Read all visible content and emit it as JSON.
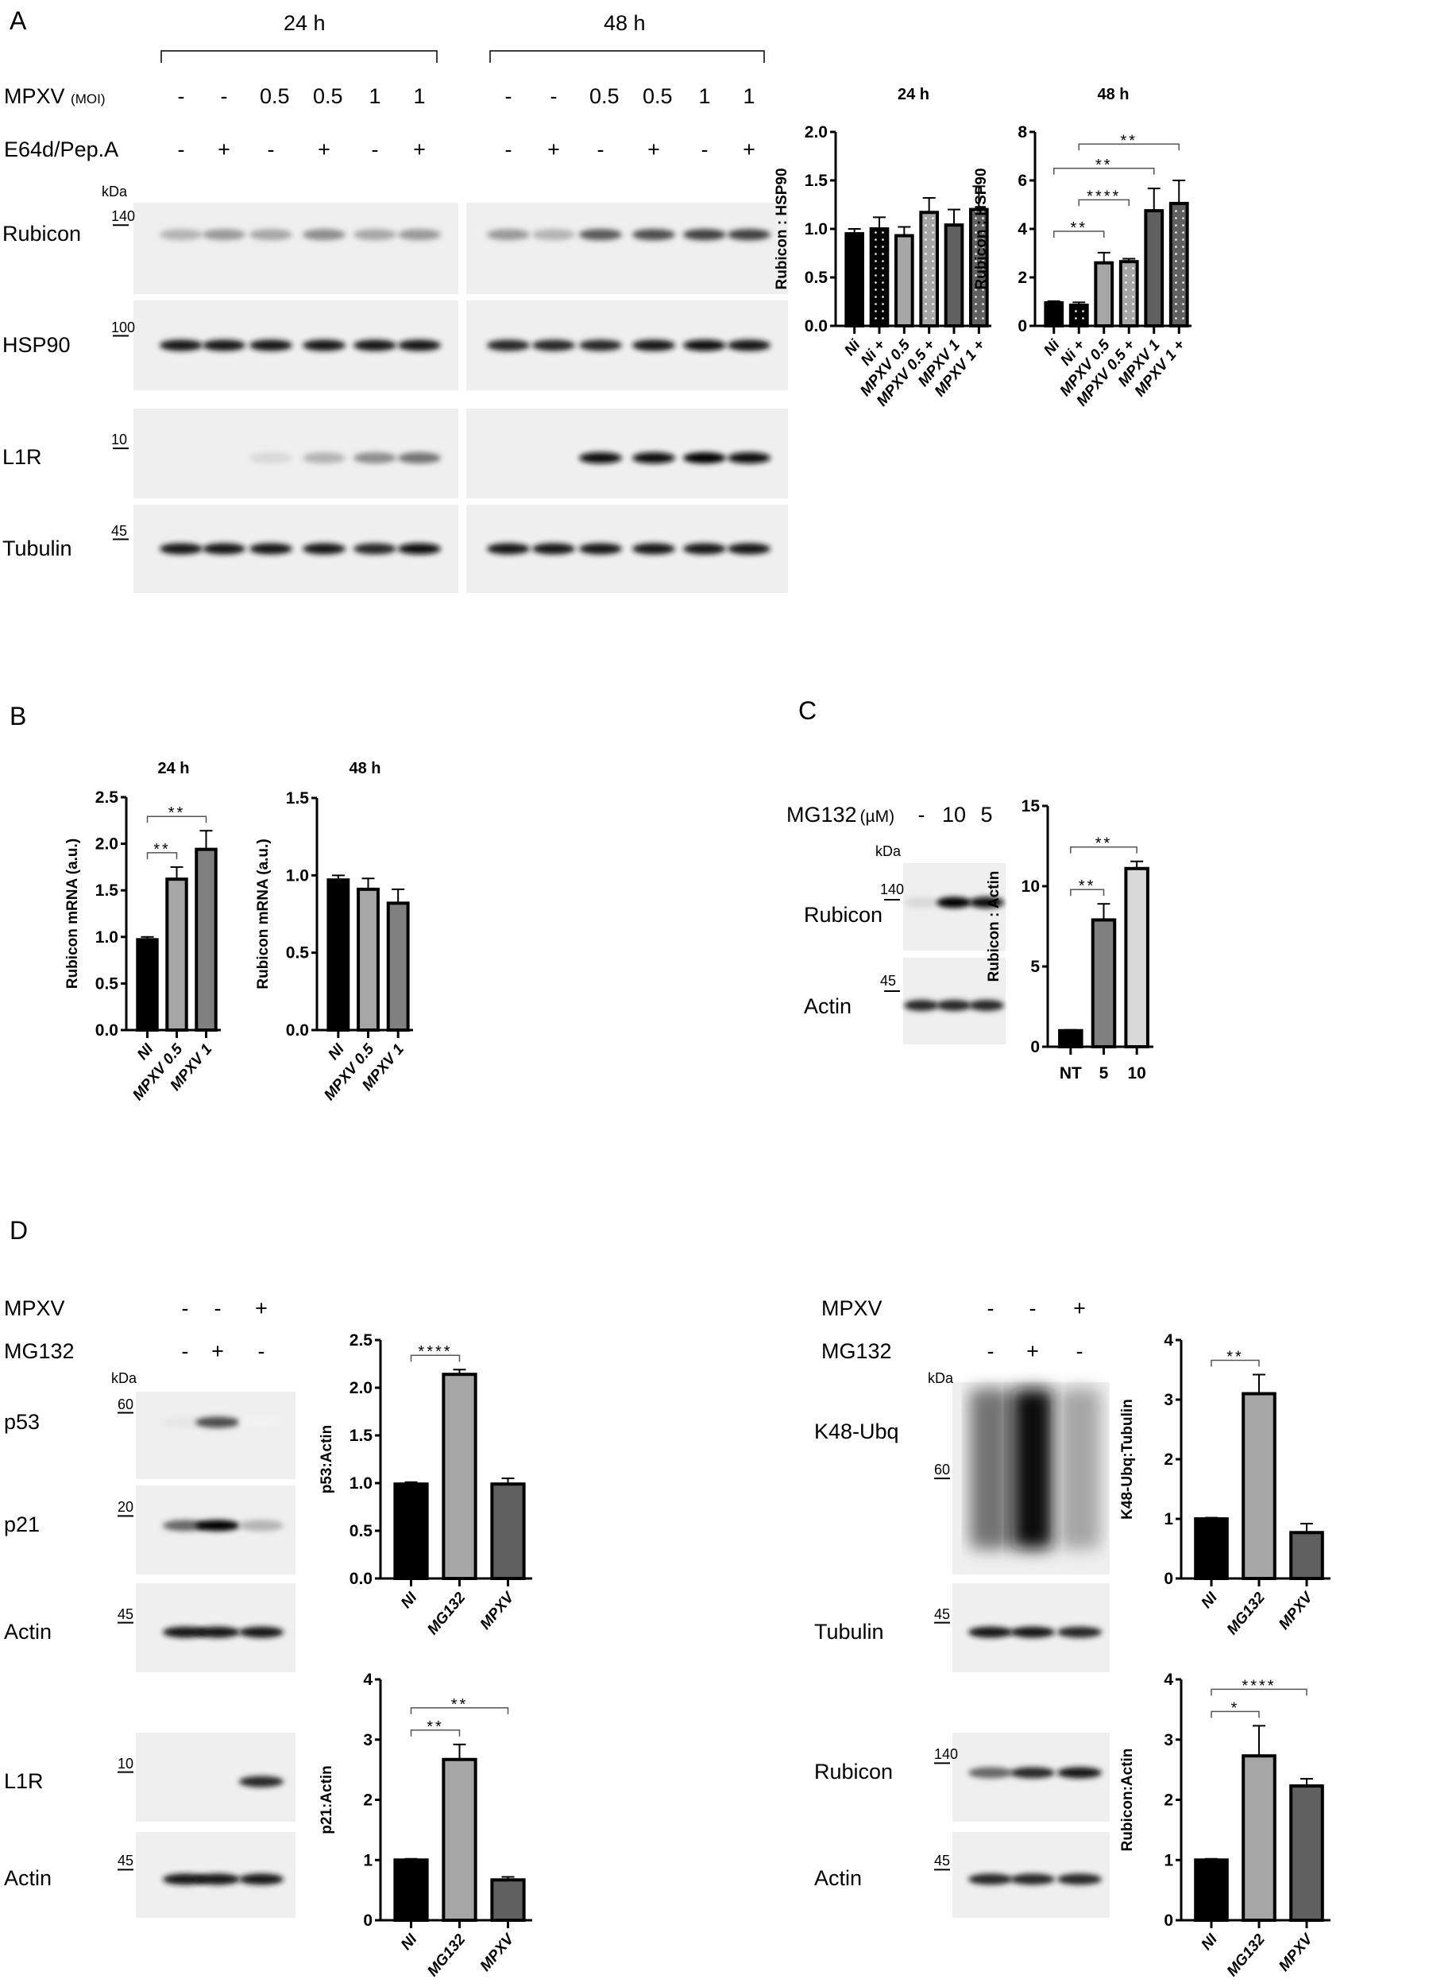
{
  "panels": {
    "a": {
      "label": "A",
      "time_24": "24 h",
      "time_48": "48 h",
      "mpxv_label": "MPXV",
      "moi_label": "(MOI)",
      "e64_label": "E64d/Pep.A",
      "mpxv_lanes": [
        "-",
        "-",
        "0.5",
        "0.5",
        "1",
        "1",
        "-",
        "-",
        "0.5",
        "0.5",
        "1",
        "1"
      ],
      "e64_lanes": [
        "-",
        "+",
        "-",
        "+",
        "-",
        "+",
        "-",
        "+",
        "-",
        "+",
        "-",
        "+"
      ],
      "kda": "kDa",
      "rows": [
        {
          "name": "Rubicon",
          "marker": "140"
        },
        {
          "name": "HSP90",
          "marker": "100"
        },
        {
          "name": "L1R",
          "marker": "10"
        },
        {
          "name": "Tubulin",
          "marker": "45"
        }
      ]
    },
    "b": {
      "label": "B"
    },
    "c": {
      "label": "C",
      "mg132_label": "MG132",
      "unit": "(µM)",
      "lanes": [
        "-",
        "10",
        "5"
      ],
      "kda": "kDa",
      "rows": [
        {
          "name": "Rubicon",
          "marker": "140"
        },
        {
          "name": "Actin",
          "marker": "45"
        }
      ]
    },
    "d": {
      "label": "D",
      "left": {
        "mpxv_label": "MPXV",
        "mg132_label": "MG132",
        "mpxv_lanes": [
          "-",
          "-",
          "+"
        ],
        "mg132_lanes": [
          "-",
          "+",
          "-"
        ],
        "kda": "kDa",
        "rows": [
          {
            "name": "p53",
            "marker": "60"
          },
          {
            "name": "p21",
            "marker": "20"
          },
          {
            "name": "Actin",
            "marker": "45"
          },
          {
            "name": "L1R",
            "marker": "10"
          },
          {
            "name": "Actin",
            "marker": "45"
          }
        ]
      },
      "right": {
        "mpxv_label": "MPXV",
        "mg132_label": "MG132",
        "mpxv_lanes": [
          "-",
          "-",
          "+"
        ],
        "mg132_lanes": [
          "-",
          "+",
          "-"
        ],
        "kda": "kDa",
        "rows": [
          {
            "name": "K48-Ubq",
            "marker": "60"
          },
          {
            "name": "Tubulin",
            "marker": "45"
          },
          {
            "name": "Rubicon",
            "marker": "140"
          },
          {
            "name": "Actin",
            "marker": "45"
          }
        ]
      }
    }
  },
  "chart_data": [
    {
      "id": "a24",
      "type": "bar",
      "title": "24 h",
      "ylabel": "Rubicon : HSP90",
      "categories": [
        "Ni",
        "Ni +",
        "MPXV 0.5",
        "MPXV 0.5 +",
        "MPXV 1",
        "MPXV 1 +"
      ],
      "values": [
        0.95,
        1.0,
        0.93,
        1.17,
        1.04,
        1.2
      ],
      "errors": [
        0.05,
        0.12,
        0.09,
        0.15,
        0.16,
        0.24
      ],
      "ylim": [
        0,
        2
      ],
      "yticks": [
        "0.0",
        "0.5",
        "1.0",
        "1.5",
        "2.0"
      ],
      "colors": [
        "#000000",
        "#000000",
        "#a6a6a6",
        "#a6a6a6",
        "#606060",
        "#606060"
      ],
      "dotted": [
        false,
        true,
        false,
        true,
        false,
        true
      ],
      "significance": []
    },
    {
      "id": "a48",
      "type": "bar",
      "title": "48 h",
      "ylabel": "Rubicon : HSP90",
      "categories": [
        "Ni",
        "Ni +",
        "MPXV 0.5",
        "MPXV 0.5 +",
        "MPXV 1",
        "MPXV 1 +"
      ],
      "values": [
        0.95,
        0.85,
        2.6,
        2.65,
        4.75,
        5.05
      ],
      "errors": [
        0.07,
        0.12,
        0.42,
        0.12,
        0.92,
        0.95
      ],
      "ylim": [
        0,
        8
      ],
      "yticks": [
        "0",
        "2",
        "4",
        "6",
        "8"
      ],
      "colors": [
        "#000000",
        "#000000",
        "#a6a6a6",
        "#a6a6a6",
        "#606060",
        "#606060"
      ],
      "dotted": [
        false,
        true,
        false,
        true,
        false,
        true
      ],
      "significance": [
        [
          0,
          2,
          "**"
        ],
        [
          1,
          3,
          "****"
        ],
        [
          0,
          4,
          "**"
        ],
        [
          1,
          5,
          "**"
        ]
      ]
    },
    {
      "id": "b24",
      "type": "bar",
      "title": "24 h",
      "ylabel": "Rubicon mRNA (a.u.)",
      "categories": [
        "NI",
        "MPXV 0.5",
        "MPXV 1"
      ],
      "values": [
        0.97,
        1.62,
        1.94
      ],
      "errors": [
        0.03,
        0.13,
        0.2
      ],
      "ylim": [
        0,
        2.5
      ],
      "yticks": [
        "0.0",
        "0.5",
        "1.0",
        "1.5",
        "2.0",
        "2.5"
      ],
      "colors": [
        "#000000",
        "#a6a6a6",
        "#808080"
      ],
      "significance": [
        [
          0,
          1,
          "**"
        ],
        [
          0,
          2,
          "**"
        ]
      ]
    },
    {
      "id": "b48",
      "type": "bar",
      "title": "48 h",
      "ylabel": "Rubicon mRNA (a.u.)",
      "categories": [
        "NI",
        "MPXV 0.5",
        "MPXV 1"
      ],
      "values": [
        0.97,
        0.91,
        0.82
      ],
      "errors": [
        0.03,
        0.07,
        0.09
      ],
      "ylim": [
        0,
        1.5
      ],
      "yticks": [
        "0.0",
        "0.5",
        "1.0",
        "1.5"
      ],
      "colors": [
        "#000000",
        "#a6a6a6",
        "#808080"
      ],
      "significance": []
    },
    {
      "id": "c",
      "type": "bar",
      "title": "",
      "ylabel": "Rubicon : Actin",
      "categories": [
        "NT",
        "5",
        "10"
      ],
      "values": [
        1.0,
        7.9,
        11.1
      ],
      "errors": [
        0.05,
        1.0,
        0.45
      ],
      "ylim": [
        0,
        15
      ],
      "yticks": [
        "0",
        "5",
        "10",
        "15"
      ],
      "colors": [
        "#000000",
        "#808080",
        "#d9d9d9"
      ],
      "significance": [
        [
          0,
          1,
          "**"
        ],
        [
          0,
          2,
          "**"
        ]
      ]
    },
    {
      "id": "dp53",
      "type": "bar",
      "title": "",
      "ylabel": "p53:Actin",
      "categories": [
        "NI",
        "MG132",
        "MPXV"
      ],
      "values": [
        0.99,
        2.14,
        0.99
      ],
      "errors": [
        0.02,
        0.05,
        0.06
      ],
      "ylim": [
        0,
        2.5
      ],
      "yticks": [
        "0.0",
        "0.5",
        "1.0",
        "1.5",
        "2.0",
        "2.5"
      ],
      "colors": [
        "#000000",
        "#a6a6a6",
        "#606060"
      ],
      "significance": [
        [
          0,
          1,
          "****"
        ]
      ]
    },
    {
      "id": "dp21",
      "type": "bar",
      "title": "",
      "ylabel": "p21:Actin",
      "categories": [
        "NI",
        "MG132",
        "MPXV"
      ],
      "values": [
        1.0,
        2.67,
        0.67
      ],
      "errors": [
        0.02,
        0.25,
        0.05
      ],
      "ylim": [
        0,
        4
      ],
      "yticks": [
        "0",
        "1",
        "2",
        "3",
        "4"
      ],
      "colors": [
        "#000000",
        "#a6a6a6",
        "#606060"
      ],
      "significance": [
        [
          0,
          1,
          "**"
        ],
        [
          0,
          2,
          "**"
        ]
      ]
    },
    {
      "id": "dk48",
      "type": "bar",
      "title": "",
      "ylabel": "K48-Ubq:Tubulin",
      "categories": [
        "NI",
        "MG132",
        "MPXV"
      ],
      "values": [
        1.0,
        3.1,
        0.77
      ],
      "errors": [
        0.02,
        0.32,
        0.15
      ],
      "ylim": [
        0,
        4
      ],
      "yticks": [
        "0",
        "1",
        "2",
        "3",
        "4"
      ],
      "colors": [
        "#000000",
        "#a6a6a6",
        "#606060"
      ],
      "significance": [
        [
          0,
          1,
          "**"
        ]
      ]
    },
    {
      "id": "drub",
      "type": "bar",
      "title": "",
      "ylabel": "Rubicon:Actin",
      "categories": [
        "NI",
        "MG132",
        "MPXV"
      ],
      "values": [
        1.0,
        2.73,
        2.23
      ],
      "errors": [
        0.02,
        0.5,
        0.12
      ],
      "ylim": [
        0,
        4
      ],
      "yticks": [
        "0",
        "1",
        "2",
        "3",
        "4"
      ],
      "colors": [
        "#000000",
        "#a6a6a6",
        "#606060"
      ],
      "significance": [
        [
          0,
          1,
          "*"
        ],
        [
          0,
          2,
          "****"
        ]
      ]
    }
  ]
}
